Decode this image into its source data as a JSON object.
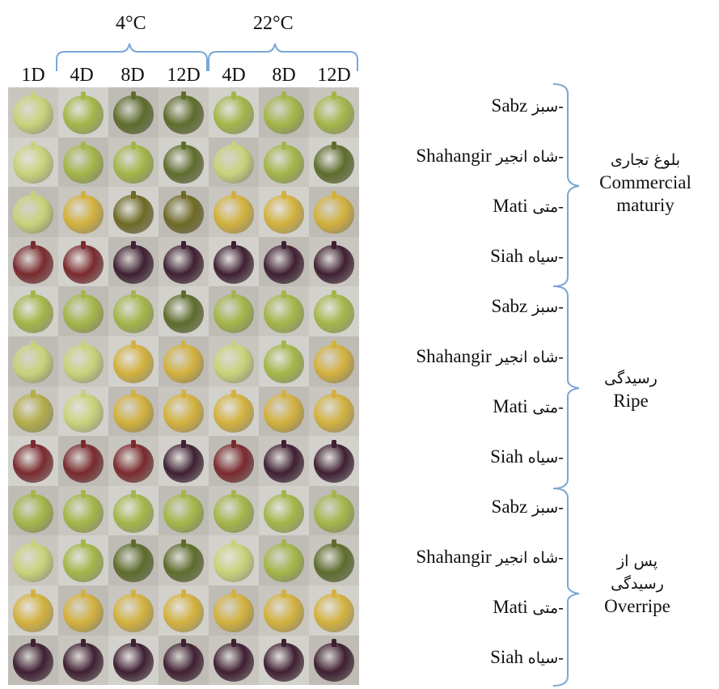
{
  "temperatures": [
    "4°C",
    "22°C"
  ],
  "days": [
    "1D",
    "4D",
    "8D",
    "12D",
    "4D",
    "8D",
    "12D"
  ],
  "varieties": [
    {
      "fa": "-سبز",
      "en": "Sabz"
    },
    {
      "fa": "-شاه انجیر",
      "en": "Shahangir"
    },
    {
      "fa": "-متی",
      "en": "Mati"
    },
    {
      "fa": "-سیاه",
      "en": "Siah"
    }
  ],
  "groups": [
    {
      "fa": "بلوغ تجاری",
      "en_lines": [
        "Commercial",
        "maturiy"
      ]
    },
    {
      "fa": "رسیدگی",
      "en_lines": [
        "Ripe"
      ]
    },
    {
      "fa_lines": [
        "پس از",
        "رسیدگی"
      ],
      "en_lines": [
        "Overripe"
      ]
    }
  ],
  "colors": {
    "bracket": "#7aa7d6",
    "green_fig": "#a6b94a",
    "pale_fig": "#c7d178",
    "yellow_fig": "#d4b23c",
    "purple_fig": "#5a2c3d",
    "dark_green_fig": "#5f6e2e"
  },
  "photo_grid": [
    [
      "pale",
      "green",
      "dkgreen",
      "dkgreen",
      "green",
      "green",
      "green"
    ],
    [
      "pale",
      "green",
      "green",
      "dkgreen",
      "pale",
      "green",
      "dkgreen"
    ],
    [
      "pale",
      "yellow",
      "dkolive",
      "dkolive",
      "yellow",
      "yellow",
      "yellow"
    ],
    [
      "red",
      "red",
      "purple",
      "purple",
      "purple",
      "purple",
      "purple"
    ],
    [
      "green",
      "green",
      "green",
      "dkgreen",
      "green",
      "green",
      "green"
    ],
    [
      "pale",
      "pale",
      "yellow",
      "yellow",
      "pale",
      "green",
      "yellow"
    ],
    [
      "olive",
      "pale",
      "yellow",
      "yellow",
      "yellow",
      "yellow",
      "yellow"
    ],
    [
      "red",
      "red",
      "red",
      "purple",
      "red",
      "purple",
      "purple"
    ],
    [
      "green",
      "green",
      "green",
      "green",
      "green",
      "green",
      "green"
    ],
    [
      "pale",
      "green",
      "dkgreen",
      "dkgreen",
      "pale",
      "green",
      "dkgreen"
    ],
    [
      "yellow",
      "yellow",
      "yellow",
      "yellow",
      "yellow",
      "yellow",
      "yellow"
    ],
    [
      "purple",
      "purple",
      "purple",
      "purple",
      "purple",
      "purple",
      "purple"
    ]
  ]
}
